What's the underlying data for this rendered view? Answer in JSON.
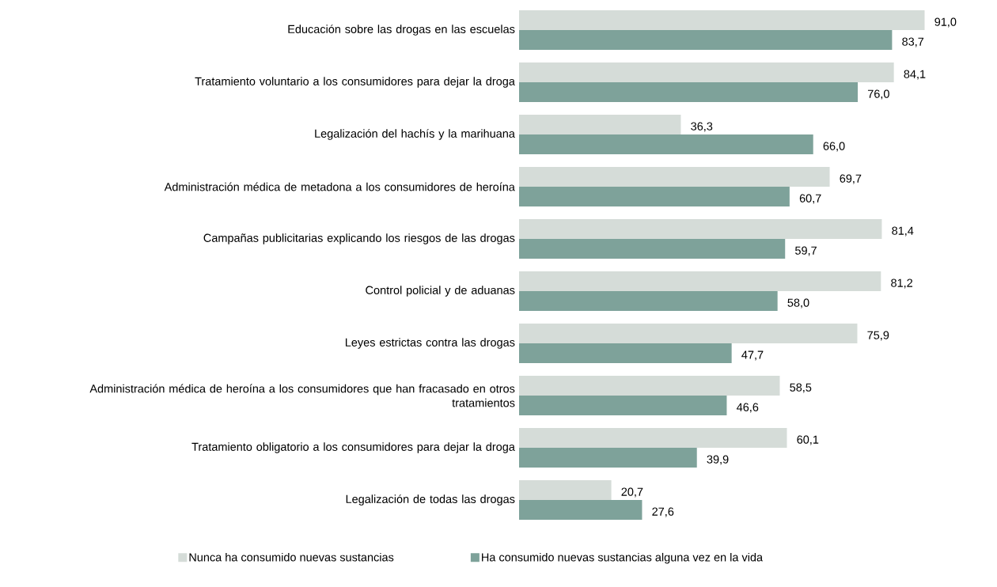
{
  "chart_data": {
    "type": "bar",
    "orientation": "horizontal",
    "legend": "bottom",
    "tick_labels": "y",
    "categories": [
      "Educación sobre las drogas en las escuelas",
      "Tratamiento voluntario a los consumidores para dejar la droga",
      "Legalización del hachís y la marihuana",
      "Administración médica de metadona a los consumidores de heroína",
      "Campañas publicitarias explicando los riesgos de las drogas",
      "Control policial y de aduanas",
      "Leyes estrictas contra las drogas",
      "Administración médica de heroína a los consumidores que han fracasado en otros tratamientos",
      "Tratamiento obligatorio a los consumidores para dejar la droga",
      "Legalización de todas las drogas"
    ],
    "series": [
      {
        "name": "Nunca ha consumido nuevas sustancias",
        "color": "#d5dcd8",
        "values": [
          91.0,
          84.1,
          36.3,
          69.7,
          81.4,
          81.2,
          75.9,
          58.5,
          60.1,
          20.7
        ],
        "value_labels": [
          "91,0",
          "84,1",
          "36,3",
          "69,7",
          "81,4",
          "81,2",
          "75,9",
          "58,5",
          "60,1",
          "20,7"
        ]
      },
      {
        "name": "Ha consumido nuevas sustancias alguna vez en la vida",
        "color": "#7ea29a",
        "values": [
          83.7,
          76.0,
          66.0,
          60.7,
          59.7,
          58.0,
          47.7,
          46.6,
          39.9,
          27.6
        ],
        "value_labels": [
          "83,7",
          "76,0",
          "66,0",
          "60,7",
          "59,7",
          "58,0",
          "47,7",
          "46,6",
          "39,9",
          "27,6"
        ]
      }
    ]
  }
}
